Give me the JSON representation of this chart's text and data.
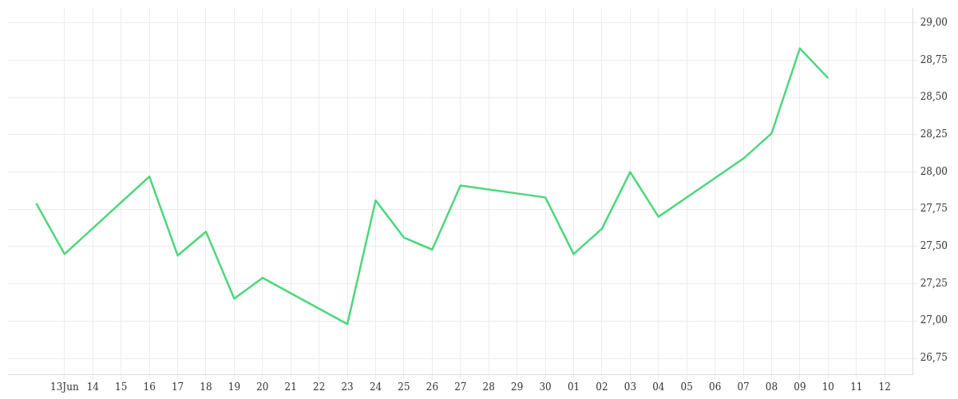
{
  "chart_data": {
    "type": "line",
    "x": [
      "--06-12",
      "--06-13",
      "--06-16",
      "--06-17",
      "--06-18",
      "--06-19",
      "--06-20",
      "--06-23",
      "--06-24",
      "--06-25",
      "--06-26",
      "--06-27",
      "--06-30",
      "--07-01",
      "--07-02",
      "--07-03",
      "--07-04",
      "--07-07",
      "--07-08",
      "--07-09",
      "--07-10"
    ],
    "series": [
      {
        "color": "#4cd77b",
        "values": [
          27.79,
          27.45,
          27.97,
          27.44,
          27.6,
          27.15,
          27.29,
          26.98,
          27.81,
          27.56,
          27.48,
          27.91,
          27.83,
          27.45,
          27.62,
          28.0,
          27.7,
          28.09,
          28.26,
          28.83,
          28.63
        ]
      }
    ],
    "xlim": [
      "--06-11",
      "--07-13"
    ],
    "xticks": [
      {
        "value": "--06-13",
        "label": "13Jun"
      },
      {
        "value": "--06-14",
        "label": "14"
      },
      {
        "value": "--06-15",
        "label": "15"
      },
      {
        "value": "--06-16",
        "label": "16"
      },
      {
        "value": "--06-17",
        "label": "17"
      },
      {
        "value": "--06-18",
        "label": "18"
      },
      {
        "value": "--06-19",
        "label": "19"
      },
      {
        "value": "--06-20",
        "label": "20"
      },
      {
        "value": "--06-21",
        "label": "21"
      },
      {
        "value": "--06-22",
        "label": "22"
      },
      {
        "value": "--06-23",
        "label": "23"
      },
      {
        "value": "--06-24",
        "label": "24"
      },
      {
        "value": "--06-25",
        "label": "25"
      },
      {
        "value": "--06-26",
        "label": "26"
      },
      {
        "value": "--06-27",
        "label": "27"
      },
      {
        "value": "--06-28",
        "label": "28"
      },
      {
        "value": "--06-29",
        "label": "29"
      },
      {
        "value": "--06-30",
        "label": "30"
      },
      {
        "value": "--07-01",
        "label": "01"
      },
      {
        "value": "--07-02",
        "label": "02"
      },
      {
        "value": "--07-03",
        "label": "03"
      },
      {
        "value": "--07-04",
        "label": "04"
      },
      {
        "value": "--07-05",
        "label": "05"
      },
      {
        "value": "--07-06",
        "label": "06"
      },
      {
        "value": "--07-07",
        "label": "07"
      },
      {
        "value": "--07-08",
        "label": "08"
      },
      {
        "value": "--07-09",
        "label": "09"
      },
      {
        "value": "--07-10",
        "label": "10"
      },
      {
        "value": "--07-11",
        "label": "11"
      },
      {
        "value": "--07-12",
        "label": "12"
      }
    ],
    "ylim": [
      26.64,
      29.1
    ],
    "yticks": [
      {
        "value": 26.75,
        "label": "26,75"
      },
      {
        "value": 27,
        "label": "27,00"
      },
      {
        "value": 27.25,
        "label": "27,25"
      },
      {
        "value": 27.5,
        "label": "27,50"
      },
      {
        "value": 27.75,
        "label": "27,75"
      },
      {
        "value": 28,
        "label": "28,00"
      },
      {
        "value": 28.25,
        "label": "28,25"
      },
      {
        "value": 28.5,
        "label": "28,50"
      },
      {
        "value": 28.75,
        "label": "28,75"
      },
      {
        "value": 29,
        "label": "29,00"
      }
    ],
    "grid": true,
    "legend": false,
    "marker": "none",
    "line_style": "solid"
  }
}
